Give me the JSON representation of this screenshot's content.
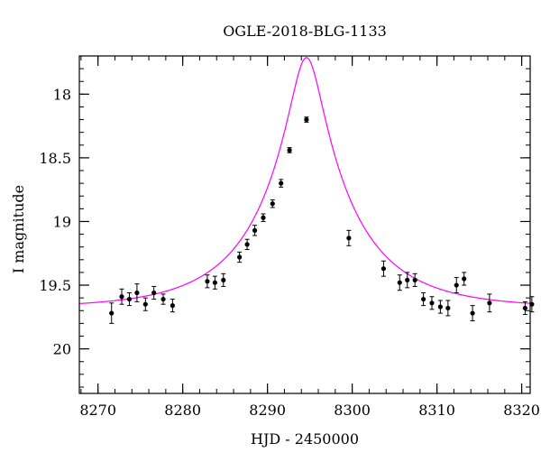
{
  "chart_data": {
    "type": "scatter",
    "title": "OGLE-2018-BLG-1133",
    "xlabel": "HJD - 2450000",
    "ylabel": "I magnitude",
    "xlim": [
      8267.8,
      8321.0
    ],
    "ylim": [
      17.7,
      20.35
    ],
    "y_inverted": true,
    "x_ticks": [
      8270,
      8280,
      8290,
      8300,
      8310,
      8320
    ],
    "y_ticks": [
      18,
      18.5,
      19,
      19.5,
      20
    ],
    "y_tick_labels": [
      "18",
      "18.5",
      "19",
      "19.5",
      "20"
    ],
    "x_minor_step": 2,
    "y_minor_step": 0.1,
    "grid": false,
    "series": [
      {
        "kind": "points_with_errorbars",
        "color": "#000000",
        "x": [
          8271.6,
          8272.8,
          8273.7,
          8274.6,
          8275.6,
          8276.6,
          8277.7,
          8278.8,
          8282.9,
          8283.8,
          8284.8,
          8286.7,
          8287.6,
          8288.5,
          8289.5,
          8290.6,
          8291.6,
          8292.6,
          8294.6,
          8299.6,
          8303.7,
          8305.6,
          8306.5,
          8307.4,
          8308.4,
          8309.4,
          8310.4,
          8311.3,
          8312.3,
          8313.2,
          8314.2,
          8316.2,
          8320.4,
          8321.2
        ],
        "y": [
          19.72,
          19.59,
          19.61,
          19.56,
          19.65,
          19.56,
          19.61,
          19.66,
          19.47,
          19.48,
          19.46,
          19.28,
          19.18,
          19.07,
          18.97,
          18.86,
          18.7,
          18.44,
          18.2,
          19.13,
          19.37,
          19.48,
          19.46,
          19.46,
          19.61,
          19.64,
          19.67,
          19.68,
          19.5,
          19.45,
          19.72,
          19.64,
          19.68,
          19.65
        ],
        "err": [
          0.08,
          0.06,
          0.05,
          0.07,
          0.05,
          0.05,
          0.04,
          0.05,
          0.05,
          0.05,
          0.05,
          0.04,
          0.04,
          0.04,
          0.03,
          0.03,
          0.03,
          0.02,
          0.02,
          0.06,
          0.06,
          0.06,
          0.06,
          0.05,
          0.05,
          0.05,
          0.05,
          0.06,
          0.06,
          0.05,
          0.06,
          0.07,
          0.05,
          0.06
        ]
      },
      {
        "kind": "model_curve",
        "color": "#ff00ff",
        "t0": 8294.6,
        "u0": 0.165,
        "tE": 11.0,
        "I_base": 19.68
      }
    ]
  }
}
